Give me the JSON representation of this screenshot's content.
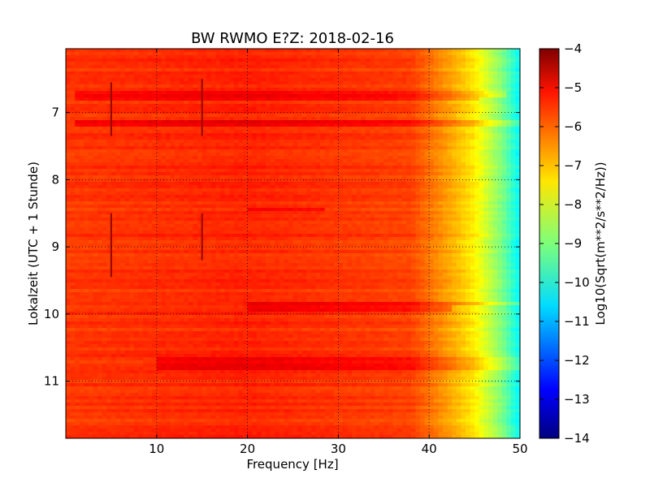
{
  "chart_data": {
    "type": "heatmap",
    "title": "BW RWMO E?Z: 2018-02-16",
    "xlabel": "Frequency [Hz]",
    "ylabel": "Lokalzeit (UTC + 1 Stunde)",
    "xlim": [
      0,
      50
    ],
    "ylim": [
      11.85,
      6.05
    ],
    "y_inverted": true,
    "xticks": [
      10,
      20,
      30,
      40,
      50
    ],
    "yticks": [
      7,
      8,
      9,
      10,
      11
    ],
    "grid": true,
    "grid_style": "dotted",
    "colormap": "jet",
    "colorbar": {
      "label": "Log10(Sqrt(m**2/s**2/Hz))",
      "range": [
        -14,
        -4
      ],
      "ticks": [
        -4,
        -5,
        -6,
        -7,
        -8,
        -9,
        -10,
        -11,
        -12,
        -13,
        -14
      ]
    },
    "spectrum_profile": [
      {
        "freq": 0,
        "value": -5.8
      },
      {
        "freq": 20,
        "value": -5.6
      },
      {
        "freq": 38,
        "value": -5.9
      },
      {
        "freq": 42,
        "value": -6.8
      },
      {
        "freq": 45,
        "value": -7.6
      },
      {
        "freq": 48,
        "value": -9.0
      },
      {
        "freq": 50,
        "value": -10.3
      }
    ],
    "strong_bands": [
      {
        "time": 6.72,
        "freq_from": 1,
        "freq_to": 48
      },
      {
        "time": 6.8,
        "freq_from": 1,
        "freq_to": 45
      },
      {
        "time": 7.17,
        "freq_from": 1,
        "freq_to": 50
      },
      {
        "time": 8.45,
        "freq_from": 20,
        "freq_to": 28
      },
      {
        "time": 9.85,
        "freq_from": 20,
        "freq_to": 50
      },
      {
        "time": 9.92,
        "freq_from": 20,
        "freq_to": 42
      },
      {
        "time": 10.68,
        "freq_from": 10,
        "freq_to": 50
      },
      {
        "time": 10.8,
        "freq_from": 10,
        "freq_to": 50
      }
    ],
    "vertical_traces": [
      {
        "freq": 5,
        "time_from": 6.55,
        "time_to": 7.35
      },
      {
        "freq": 5,
        "time_from": 8.5,
        "time_to": 9.45
      },
      {
        "freq": 15,
        "time_from": 6.5,
        "time_to": 7.35
      },
      {
        "freq": 15,
        "time_from": 8.5,
        "time_to": 9.2
      }
    ]
  }
}
